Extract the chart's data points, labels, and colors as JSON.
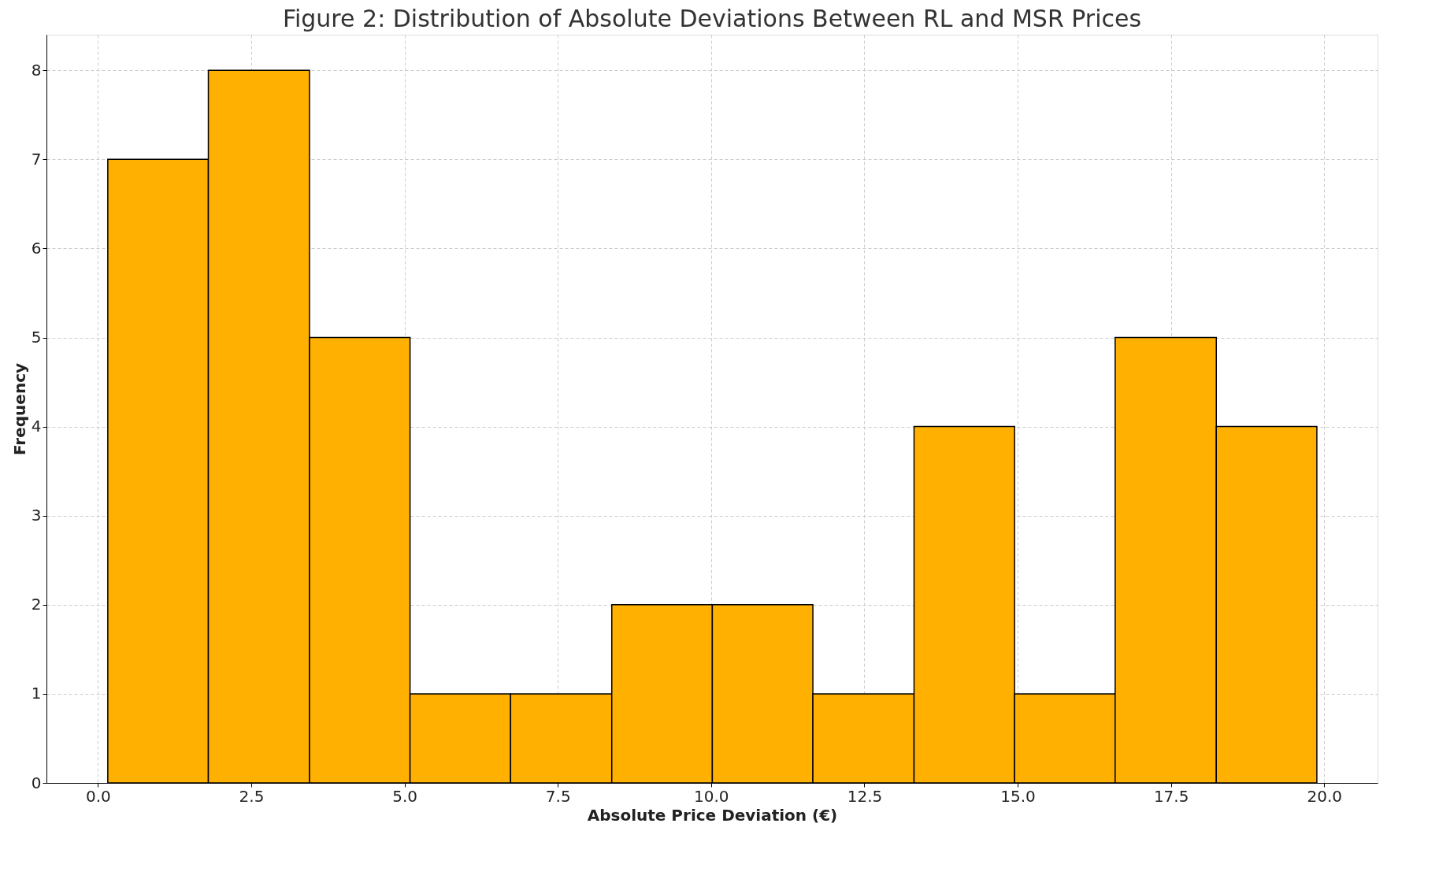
{
  "chart_data": {
    "type": "histogram",
    "title": "Figure 2: Distribution of Absolute Deviations Between RL and MSR Prices",
    "xlabel": "Absolute Price Deviation (€)",
    "ylabel": "Frequency",
    "bins": [
      0.16,
      1.8,
      3.45,
      5.09,
      6.73,
      8.38,
      10.02,
      11.66,
      13.31,
      14.95,
      16.59,
      18.24,
      19.88
    ],
    "values": [
      7,
      8,
      5,
      1,
      1,
      2,
      2,
      1,
      4,
      1,
      5,
      4
    ],
    "color": "#ffb000",
    "xlim": [
      -0.84,
      20.87
    ],
    "xticks": [
      {
        "value": 0,
        "label": "0.0"
      },
      2.5,
      {
        "value": 5,
        "label": "5.0"
      },
      7.5,
      {
        "value": 10,
        "label": "10.0"
      },
      12.5,
      {
        "value": 15,
        "label": "15.0"
      },
      17.5,
      {
        "value": 20,
        "label": "20.0"
      }
    ],
    "ylim": [
      0,
      8.4
    ],
    "yticks": [
      0,
      1,
      2,
      3,
      4,
      5,
      6,
      7,
      8
    ],
    "grid": true
  }
}
